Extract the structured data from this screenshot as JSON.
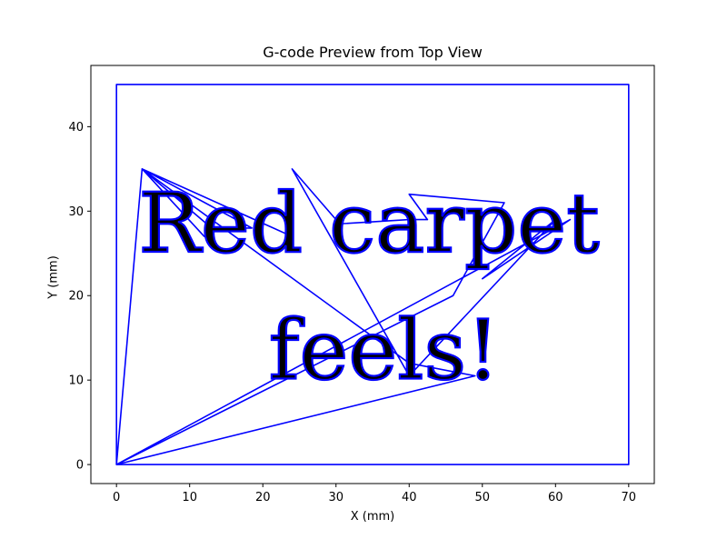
{
  "chart_data": {
    "type": "line",
    "title": "G-code Preview from Top View",
    "xlabel": "X (mm)",
    "ylabel": "Y (mm)",
    "xlim": [
      -3.5,
      73.5
    ],
    "ylim": [
      -2.25,
      47.25
    ],
    "xticks": [
      0,
      10,
      20,
      30,
      40,
      50,
      60,
      70
    ],
    "yticks": [
      0,
      10,
      20,
      30,
      40
    ],
    "grid": false,
    "legend": "none",
    "color": "#0000ff",
    "series": [
      {
        "x": [
          0,
          70,
          70,
          0,
          0
        ],
        "y": [
          0,
          0,
          45,
          45,
          0
        ]
      },
      {
        "x": [
          0,
          3.5,
          12,
          3.5,
          13,
          18.5,
          3.5,
          24,
          3.5,
          40,
          49,
          0,
          46,
          53,
          40,
          42.5,
          40,
          30.5,
          24,
          24,
          40,
          60,
          50,
          62,
          0
        ],
        "y": [
          0,
          35,
          27,
          35,
          28,
          28,
          35,
          27,
          35,
          12,
          10.5,
          0,
          20,
          31,
          32,
          29,
          29,
          28.5,
          35,
          35,
          10.5,
          29,
          22,
          29,
          0
        ]
      }
    ],
    "text_rendering": [
      {
        "text": "Red carpet",
        "x": 3,
        "y": 25.2,
        "height": 9.8
      },
      {
        "text": "feels!",
        "x": 20.8,
        "y": 10.2,
        "height": 9.8
      }
    ]
  },
  "colors": {
    "line": "#0000ff",
    "axes": "#000000",
    "background": "#ffffff"
  }
}
